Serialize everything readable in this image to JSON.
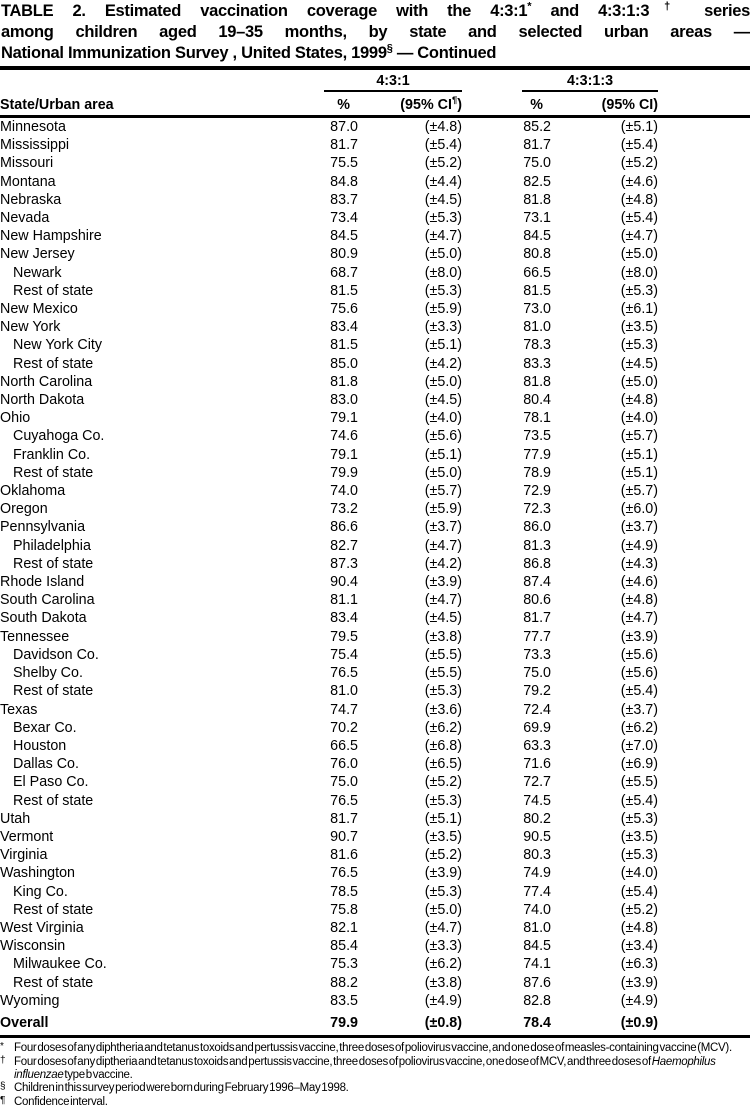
{
  "title": {
    "line1_a": "TABLE 2. Estimated vaccination coverage with the 4:3:1",
    "line1_sup1": "*",
    "line1_b": " and 4:3:1:3",
    "line1_sup2": "†",
    "line1_c": " series",
    "line2": "among children aged 19–35 months, by state and selected urban areas —",
    "line3_a": "National Immunization Survey , United States, 1999",
    "line3_sup": "§",
    "line3_b": " — Continued"
  },
  "header": {
    "area_col": "State/Urban area",
    "group1": "4:3:1",
    "group2": "4:3:1:3",
    "pct1": "%",
    "ci1_pre": "(95% CI",
    "ci1_sup": "¶",
    "ci1_post": ")",
    "pct2": "%",
    "ci2": "(95% CI)"
  },
  "table": {
    "rows": [
      {
        "name": "Minnesota",
        "indent": false,
        "pct431": "87.0",
        "ci431": "(±4.8)",
        "pct4313": "85.2",
        "ci4313": "(±5.1)"
      },
      {
        "name": "Mississippi",
        "indent": false,
        "pct431": "81.7",
        "ci431": "(±5.4)",
        "pct4313": "81.7",
        "ci4313": "(±5.4)"
      },
      {
        "name": "Missouri",
        "indent": false,
        "pct431": "75.5",
        "ci431": "(±5.2)",
        "pct4313": "75.0",
        "ci4313": "(±5.2)"
      },
      {
        "name": "Montana",
        "indent": false,
        "pct431": "84.8",
        "ci431": "(±4.4)",
        "pct4313": "82.5",
        "ci4313": "(±4.6)"
      },
      {
        "name": "Nebraska",
        "indent": false,
        "pct431": "83.7",
        "ci431": "(±4.5)",
        "pct4313": "81.8",
        "ci4313": "(±4.8)"
      },
      {
        "name": "Nevada",
        "indent": false,
        "pct431": "73.4",
        "ci431": "(±5.3)",
        "pct4313": "73.1",
        "ci4313": "(±5.4)"
      },
      {
        "name": "New Hampshire",
        "indent": false,
        "pct431": "84.5",
        "ci431": "(±4.7)",
        "pct4313": "84.5",
        "ci4313": "(±4.7)"
      },
      {
        "name": "New Jersey",
        "indent": false,
        "pct431": "80.9",
        "ci431": "(±5.0)",
        "pct4313": "80.8",
        "ci4313": "(±5.0)"
      },
      {
        "name": "Newark",
        "indent": true,
        "pct431": "68.7",
        "ci431": "(±8.0)",
        "pct4313": "66.5",
        "ci4313": "(±8.0)"
      },
      {
        "name": "Rest of state",
        "indent": true,
        "pct431": "81.5",
        "ci431": "(±5.3)",
        "pct4313": "81.5",
        "ci4313": "(±5.3)"
      },
      {
        "name": "New Mexico",
        "indent": false,
        "pct431": "75.6",
        "ci431": "(±5.9)",
        "pct4313": "73.0",
        "ci4313": "(±6.1)"
      },
      {
        "name": "New York",
        "indent": false,
        "pct431": "83.4",
        "ci431": "(±3.3)",
        "pct4313": "81.0",
        "ci4313": "(±3.5)"
      },
      {
        "name": "New York City",
        "indent": true,
        "pct431": "81.5",
        "ci431": "(±5.1)",
        "pct4313": "78.3",
        "ci4313": "(±5.3)"
      },
      {
        "name": "Rest of state",
        "indent": true,
        "pct431": "85.0",
        "ci431": "(±4.2)",
        "pct4313": "83.3",
        "ci4313": "(±4.5)"
      },
      {
        "name": "North Carolina",
        "indent": false,
        "pct431": "81.8",
        "ci431": "(±5.0)",
        "pct4313": "81.8",
        "ci4313": "(±5.0)"
      },
      {
        "name": "North Dakota",
        "indent": false,
        "pct431": "83.0",
        "ci431": "(±4.5)",
        "pct4313": "80.4",
        "ci4313": "(±4.8)"
      },
      {
        "name": "Ohio",
        "indent": false,
        "pct431": "79.1",
        "ci431": "(±4.0)",
        "pct4313": "78.1",
        "ci4313": "(±4.0)"
      },
      {
        "name": "Cuyahoga Co.",
        "indent": true,
        "pct431": "74.6",
        "ci431": "(±5.6)",
        "pct4313": "73.5",
        "ci4313": "(±5.7)"
      },
      {
        "name": "Franklin Co.",
        "indent": true,
        "pct431": "79.1",
        "ci431": "(±5.1)",
        "pct4313": "77.9",
        "ci4313": "(±5.1)"
      },
      {
        "name": "Rest of state",
        "indent": true,
        "pct431": "79.9",
        "ci431": "(±5.0)",
        "pct4313": "78.9",
        "ci4313": "(±5.1)"
      },
      {
        "name": "Oklahoma",
        "indent": false,
        "pct431": "74.0",
        "ci431": "(±5.7)",
        "pct4313": "72.9",
        "ci4313": "(±5.7)"
      },
      {
        "name": "Oregon",
        "indent": false,
        "pct431": "73.2",
        "ci431": "(±5.9)",
        "pct4313": "72.3",
        "ci4313": "(±6.0)"
      },
      {
        "name": "Pennsylvania",
        "indent": false,
        "pct431": "86.6",
        "ci431": "(±3.7)",
        "pct4313": "86.0",
        "ci4313": "(±3.7)"
      },
      {
        "name": "Philadelphia",
        "indent": true,
        "pct431": "82.7",
        "ci431": "(±4.7)",
        "pct4313": "81.3",
        "ci4313": "(±4.9)"
      },
      {
        "name": "Rest of state",
        "indent": true,
        "pct431": "87.3",
        "ci431": "(±4.2)",
        "pct4313": "86.8",
        "ci4313": "(±4.3)"
      },
      {
        "name": "Rhode Island",
        "indent": false,
        "pct431": "90.4",
        "ci431": "(±3.9)",
        "pct4313": "87.4",
        "ci4313": "(±4.6)"
      },
      {
        "name": "South Carolina",
        "indent": false,
        "pct431": "81.1",
        "ci431": "(±4.7)",
        "pct4313": "80.6",
        "ci4313": "(±4.8)"
      },
      {
        "name": "South Dakota",
        "indent": false,
        "pct431": "83.4",
        "ci431": "(±4.5)",
        "pct4313": "81.7",
        "ci4313": "(±4.7)"
      },
      {
        "name": "Tennessee",
        "indent": false,
        "pct431": "79.5",
        "ci431": "(±3.8)",
        "pct4313": "77.7",
        "ci4313": "(±3.9)"
      },
      {
        "name": "Davidson Co.",
        "indent": true,
        "pct431": "75.4",
        "ci431": "(±5.5)",
        "pct4313": "73.3",
        "ci4313": "(±5.6)"
      },
      {
        "name": "Shelby Co.",
        "indent": true,
        "pct431": "76.5",
        "ci431": "(±5.5)",
        "pct4313": "75.0",
        "ci4313": "(±5.6)"
      },
      {
        "name": "Rest of state",
        "indent": true,
        "pct431": "81.0",
        "ci431": "(±5.3)",
        "pct4313": "79.2",
        "ci4313": "(±5.4)"
      },
      {
        "name": "Texas",
        "indent": false,
        "pct431": "74.7",
        "ci431": "(±3.6)",
        "pct4313": "72.4",
        "ci4313": "(±3.7)"
      },
      {
        "name": "Bexar Co.",
        "indent": true,
        "pct431": "70.2",
        "ci431": "(±6.2)",
        "pct4313": "69.9",
        "ci4313": "(±6.2)"
      },
      {
        "name": "Houston",
        "indent": true,
        "pct431": "66.5",
        "ci431": "(±6.8)",
        "pct4313": "63.3",
        "ci4313": "(±7.0)"
      },
      {
        "name": "Dallas Co.",
        "indent": true,
        "pct431": "76.0",
        "ci431": "(±6.5)",
        "pct4313": "71.6",
        "ci4313": "(±6.9)"
      },
      {
        "name": "El Paso Co.",
        "indent": true,
        "pct431": "75.0",
        "ci431": "(±5.2)",
        "pct4313": "72.7",
        "ci4313": "(±5.5)"
      },
      {
        "name": "Rest of state",
        "indent": true,
        "pct431": "76.5",
        "ci431": "(±5.3)",
        "pct4313": "74.5",
        "ci4313": "(±5.4)"
      },
      {
        "name": "Utah",
        "indent": false,
        "pct431": "81.7",
        "ci431": "(±5.1)",
        "pct4313": "80.2",
        "ci4313": "(±5.3)"
      },
      {
        "name": "Vermont",
        "indent": false,
        "pct431": "90.7",
        "ci431": "(±3.5)",
        "pct4313": "90.5",
        "ci4313": "(±3.5)"
      },
      {
        "name": "Virginia",
        "indent": false,
        "pct431": "81.6",
        "ci431": "(±5.2)",
        "pct4313": "80.3",
        "ci4313": "(±5.3)"
      },
      {
        "name": "Washington",
        "indent": false,
        "pct431": "76.5",
        "ci431": "(±3.9)",
        "pct4313": "74.9",
        "ci4313": "(±4.0)"
      },
      {
        "name": "King Co.",
        "indent": true,
        "pct431": "78.5",
        "ci431": "(±5.3)",
        "pct4313": "77.4",
        "ci4313": "(±5.4)"
      },
      {
        "name": "Rest of state",
        "indent": true,
        "pct431": "75.8",
        "ci431": "(±5.0)",
        "pct4313": "74.0",
        "ci4313": "(±5.2)"
      },
      {
        "name": "West Virginia",
        "indent": false,
        "pct431": "82.1",
        "ci431": "(±4.7)",
        "pct4313": "81.0",
        "ci4313": "(±4.8)"
      },
      {
        "name": "Wisconsin",
        "indent": false,
        "pct431": "85.4",
        "ci431": "(±3.3)",
        "pct4313": "84.5",
        "ci4313": "(±3.4)"
      },
      {
        "name": "Milwaukee Co.",
        "indent": true,
        "pct431": "75.3",
        "ci431": "(±6.2)",
        "pct4313": "74.1",
        "ci4313": "(±6.3)"
      },
      {
        "name": "Rest of state",
        "indent": true,
        "pct431": "88.2",
        "ci431": "(±3.8)",
        "pct4313": "87.6",
        "ci4313": "(±3.9)"
      },
      {
        "name": "Wyoming",
        "indent": false,
        "pct431": "83.5",
        "ci431": "(±4.9)",
        "pct4313": "82.8",
        "ci4313": "(±4.9)"
      }
    ],
    "overall": {
      "name": "Overall",
      "pct431": "79.9",
      "ci431": "(±0.8)",
      "pct4313": "78.4",
      "ci4313": "(±0.9)"
    }
  },
  "footnotes": [
    {
      "marker": "*",
      "text": "Four doses of any diphtheria and tetanus toxoids and pertussis vaccine, three doses of poliovirus vaccine, and one dose of measles-containing vaccine (MCV)."
    },
    {
      "marker": "†",
      "text_a": "Four doses of any diptheria and tetanus toxoids and pertussis vaccine, three doses of poliovirus vaccine, one dose of MCV, and three doses of ",
      "text_italic": "Haemophilus influenzae",
      "text_b": " type b vaccine."
    },
    {
      "marker": "§",
      "text": "Children in this survey period were born during February 1996–May 1998."
    },
    {
      "marker": "¶",
      "text": "Confidence interval."
    }
  ]
}
